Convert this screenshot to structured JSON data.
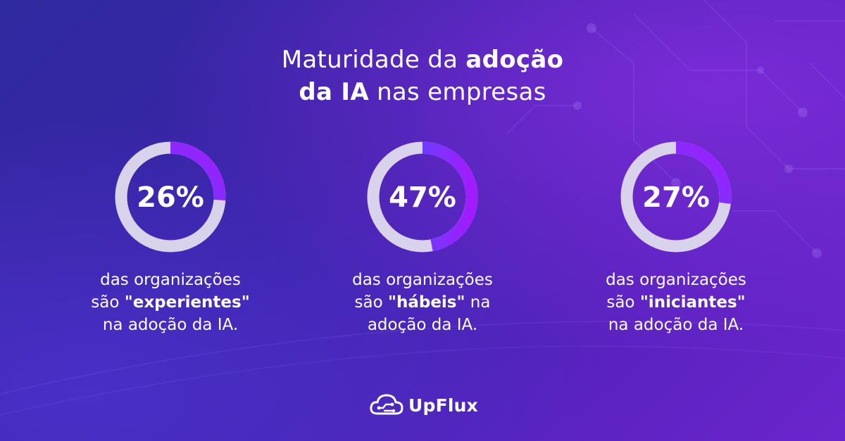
{
  "title": {
    "line1_regular": "Maturidade da ",
    "line1_bold": "adoção",
    "line2_bold": "da IA",
    "line2_regular": " nas empresas"
  },
  "chart_data": {
    "type": "donut",
    "title": "Maturidade da adoção da IA nas empresas",
    "categories": [
      "experientes",
      "hábeis",
      "iniciantes"
    ],
    "values": [
      26,
      47,
      27
    ],
    "labels": [
      "26%",
      "47%",
      "27%"
    ],
    "unit": "%"
  },
  "stats": [
    {
      "pct_label": "26%",
      "line1": "das organizações",
      "line2_pre": "são ",
      "line2_bold": "\"experientes\"",
      "line2_post": "",
      "line3": "na adoção da IA."
    },
    {
      "pct_label": "47%",
      "line1": "das organizações",
      "line2_pre": "são ",
      "line2_bold": "\"hábeis\"",
      "line2_post": " na",
      "line3": "adoção da IA."
    },
    {
      "pct_label": "27%",
      "line1": "das organizações",
      "line2_pre": "são ",
      "line2_bold": "\"iniciantes\"",
      "line2_post": "",
      "line3": "na adoção da IA."
    }
  ],
  "colors": {
    "ring_track": "#d8d3ea",
    "arc_start": "#3b5bff",
    "arc_end": "#a21bff"
  },
  "logo": {
    "text": "UpFlux",
    "icon": "cloud-circuit-icon"
  }
}
